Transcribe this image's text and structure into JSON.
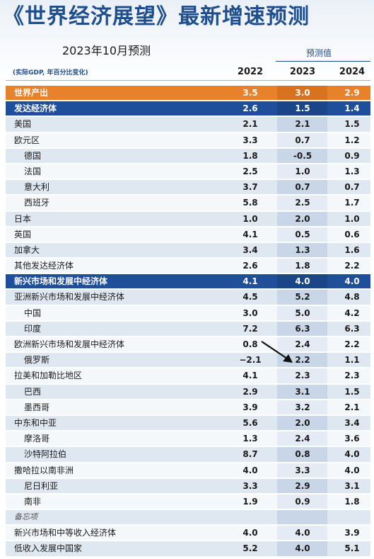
{
  "header": {
    "title": "《世界经济展望》最新增速预测",
    "subtitle": "2023年10月预测",
    "forecast_label": "预测值",
    "unit_note": "(实际GDP, 年百分比变化)",
    "years": [
      "2022",
      "2023",
      "2024"
    ]
  },
  "rows": [
    {
      "label": "世界产出",
      "v2022": "3.5",
      "v2023": "3.0",
      "v2024": "2.9",
      "style": "orange",
      "indent": false
    },
    {
      "label": "发达经济体",
      "v2022": "2.6",
      "v2023": "1.5",
      "v2024": "1.4",
      "style": "navy",
      "indent": false
    },
    {
      "label": "美国",
      "v2022": "2.1",
      "v2023": "2.1",
      "v2024": "1.5",
      "style": "light",
      "indent": false
    },
    {
      "label": "欧元区",
      "v2022": "3.3",
      "v2023": "0.7",
      "v2024": "1.2",
      "style": "white",
      "indent": false
    },
    {
      "label": "德国",
      "v2022": "1.8",
      "v2023": "-0.5",
      "v2024": "0.9",
      "style": "light",
      "indent": true
    },
    {
      "label": "法国",
      "v2022": "2.5",
      "v2023": "1.0",
      "v2024": "1.3",
      "style": "white",
      "indent": true
    },
    {
      "label": "意大利",
      "v2022": "3.7",
      "v2023": "0.7",
      "v2024": "0.7",
      "style": "light",
      "indent": true
    },
    {
      "label": "西班牙",
      "v2022": "5.8",
      "v2023": "2.5",
      "v2024": "1.7",
      "style": "white",
      "indent": true
    },
    {
      "label": "日本",
      "v2022": "1.0",
      "v2023": "2.0",
      "v2024": "1.0",
      "style": "light",
      "indent": false
    },
    {
      "label": "英国",
      "v2022": "4.1",
      "v2023": "0.5",
      "v2024": "0.6",
      "style": "white",
      "indent": false
    },
    {
      "label": "加拿大",
      "v2022": "3.4",
      "v2023": "1.3",
      "v2024": "1.6",
      "style": "light",
      "indent": false
    },
    {
      "label": "其他发达经济体",
      "v2022": "2.6",
      "v2023": "1.8",
      "v2024": "2.2",
      "style": "white",
      "indent": false
    },
    {
      "label": "新兴市场和发展中经济体",
      "v2022": "4.1",
      "v2023": "4.0",
      "v2024": "4.0",
      "style": "navy",
      "indent": false
    },
    {
      "label": "亚洲新兴市场和发展中经济体",
      "v2022": "4.5",
      "v2023": "5.2",
      "v2024": "4.8",
      "style": "light",
      "indent": false
    },
    {
      "label": "中国",
      "v2022": "3.0",
      "v2023": "5.0",
      "v2024": "4.2",
      "style": "white",
      "indent": true
    },
    {
      "label": "印度",
      "v2022": "7.2",
      "v2023": "6.3",
      "v2024": "6.3",
      "style": "light",
      "indent": true
    },
    {
      "label": "欧洲新兴市场和发展中经济体",
      "v2022": "0.8",
      "v2023": "2.4",
      "v2024": "2.2",
      "style": "white",
      "indent": false
    },
    {
      "label": "俄罗斯",
      "v2022": "−2.1",
      "v2023": "2.2",
      "v2024": "1.1",
      "style": "light",
      "indent": true
    },
    {
      "label": "拉美和加勒比地区",
      "v2022": "4.1",
      "v2023": "2.3",
      "v2024": "2.3",
      "style": "white",
      "indent": false
    },
    {
      "label": "巴西",
      "v2022": "2.9",
      "v2023": "3.1",
      "v2024": "1.5",
      "style": "light",
      "indent": true
    },
    {
      "label": "墨西哥",
      "v2022": "3.9",
      "v2023": "3.2",
      "v2024": "2.1",
      "style": "white",
      "indent": true
    },
    {
      "label": "中东和中亚",
      "v2022": "5.6",
      "v2023": "2.0",
      "v2024": "3.4",
      "style": "light",
      "indent": false
    },
    {
      "label": "摩洛哥",
      "v2022": "1.3",
      "v2023": "2.4",
      "v2024": "3.6",
      "style": "white",
      "indent": true
    },
    {
      "label": "沙特阿拉伯",
      "v2022": "8.7",
      "v2023": "0.8",
      "v2024": "4.0",
      "style": "light",
      "indent": true
    },
    {
      "label": "撒哈拉以南非洲",
      "v2022": "4.0",
      "v2023": "3.3",
      "v2024": "4.0",
      "style": "white",
      "indent": false
    },
    {
      "label": "尼日利亚",
      "v2022": "3.3",
      "v2023": "2.9",
      "v2024": "3.1",
      "style": "light",
      "indent": true
    },
    {
      "label": "南非",
      "v2022": "1.9",
      "v2023": "0.9",
      "v2024": "1.8",
      "style": "white",
      "indent": true
    },
    {
      "label": "备忘项",
      "v2022": "",
      "v2023": "",
      "v2024": "",
      "style": "light memo",
      "indent": false
    },
    {
      "label": "新兴市场和中等收入经济体",
      "v2022": "4.0",
      "v2023": "4.0",
      "v2024": "3.9",
      "style": "white",
      "indent": false
    },
    {
      "label": "低收入发展中国家",
      "v2022": "5.2",
      "v2023": "4.0",
      "v2024": "5.1",
      "style": "light",
      "indent": false
    }
  ]
}
